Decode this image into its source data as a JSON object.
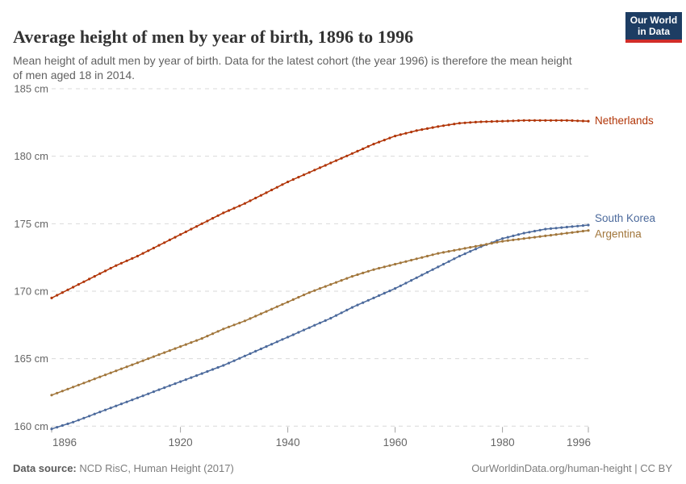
{
  "header": {
    "title": "Average height of men by year of birth, 1896 to 1996",
    "subtitle": "Mean height of adult men by year of birth. Data for the latest cohort (the year 1996) is therefore the mean height of men aged 18 in 2014."
  },
  "logo": {
    "line1": "Our World",
    "line2": "in Data",
    "bg_color": "#1D3D63",
    "accent_color": "#D12D29"
  },
  "footer": {
    "source_label": "Data source:",
    "source_value": "NCD RisC, Human Height (2017)",
    "credit": "OurWorldinData.org/human-height | CC BY"
  },
  "chart_data": {
    "type": "line",
    "title": "Average height of men by year of birth, 1896 to 1996",
    "xlabel": "",
    "ylabel": "",
    "x_axis": {
      "min": 1896,
      "max": 1996,
      "ticks": [
        1896,
        1920,
        1940,
        1960,
        1980,
        1996
      ]
    },
    "y_axis": {
      "min": 159.6,
      "max": 185.3,
      "ticks": [
        160,
        165,
        170,
        175,
        180,
        185
      ],
      "unit": "cm",
      "grid": true,
      "grid_color": "#d9d9d9"
    },
    "legend_position": "right-edge-labels",
    "marker": "dot-every-year",
    "series": [
      {
        "name": "Netherlands",
        "color": "#B13507",
        "x": [
          1896,
          1900,
          1904,
          1908,
          1912,
          1916,
          1920,
          1924,
          1928,
          1932,
          1936,
          1940,
          1944,
          1948,
          1952,
          1956,
          1960,
          1964,
          1968,
          1972,
          1976,
          1980,
          1984,
          1988,
          1992,
          1996
        ],
        "y": [
          169.5,
          170.3,
          171.1,
          171.9,
          172.6,
          173.4,
          174.2,
          175.0,
          175.8,
          176.5,
          177.3,
          178.1,
          178.8,
          179.5,
          180.2,
          180.9,
          181.5,
          181.9,
          182.2,
          182.45,
          182.55,
          182.6,
          182.65,
          182.65,
          182.65,
          182.6
        ]
      },
      {
        "name": "South Korea",
        "color": "#4C6A9C",
        "x": [
          1896,
          1900,
          1904,
          1908,
          1912,
          1916,
          1920,
          1924,
          1928,
          1932,
          1936,
          1940,
          1944,
          1948,
          1952,
          1956,
          1960,
          1964,
          1968,
          1972,
          1976,
          1980,
          1984,
          1988,
          1992,
          1996
        ],
        "y": [
          159.8,
          160.3,
          160.9,
          161.5,
          162.1,
          162.7,
          163.3,
          163.9,
          164.5,
          165.2,
          165.9,
          166.6,
          167.3,
          168.0,
          168.8,
          169.5,
          170.2,
          171.0,
          171.8,
          172.6,
          173.3,
          173.9,
          174.3,
          174.6,
          174.75,
          174.9
        ]
      },
      {
        "name": "Argentina",
        "color": "#A1763B",
        "x": [
          1896,
          1900,
          1904,
          1908,
          1912,
          1916,
          1920,
          1924,
          1928,
          1932,
          1936,
          1940,
          1944,
          1948,
          1952,
          1956,
          1960,
          1964,
          1968,
          1972,
          1976,
          1980,
          1984,
          1988,
          1992,
          1996
        ],
        "y": [
          162.3,
          162.9,
          163.5,
          164.1,
          164.7,
          165.3,
          165.9,
          166.5,
          167.2,
          167.8,
          168.5,
          169.2,
          169.9,
          170.5,
          171.1,
          171.6,
          172.0,
          172.4,
          172.8,
          173.1,
          173.4,
          173.7,
          173.9,
          174.1,
          174.3,
          174.5
        ]
      }
    ]
  }
}
